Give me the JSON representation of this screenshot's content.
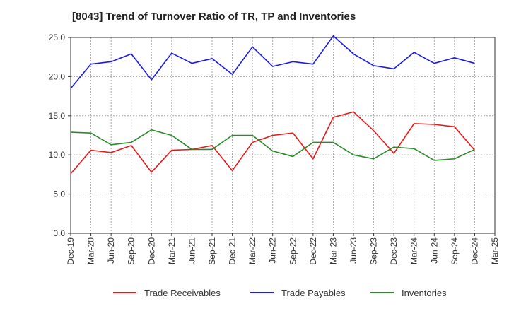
{
  "chart_data": {
    "type": "line",
    "title": "[8043]  Trend of Turnover Ratio of TR, TP and Inventories",
    "xlabel": "",
    "ylabel": "",
    "ylim": [
      0,
      25
    ],
    "yticks": [
      "0.0",
      "5.0",
      "10.0",
      "15.0",
      "20.0",
      "25.0"
    ],
    "categories": [
      "Dec-19",
      "Mar-20",
      "Jun-20",
      "Sep-20",
      "Dec-20",
      "Mar-21",
      "Jun-21",
      "Sep-21",
      "Dec-21",
      "Mar-22",
      "Jun-22",
      "Sep-22",
      "Dec-22",
      "Mar-23",
      "Jun-23",
      "Sep-23",
      "Dec-23",
      "Mar-24",
      "Jun-24",
      "Sep-24",
      "Dec-24",
      "Mar-25"
    ],
    "grid": true,
    "legend_position": "bottom",
    "series": [
      {
        "name": "Trade Receivables",
        "color": "#e8191a",
        "values": [
          7.6,
          10.6,
          10.3,
          11.2,
          7.8,
          10.6,
          10.7,
          11.2,
          8.0,
          11.6,
          12.5,
          12.8,
          9.5,
          14.8,
          15.5,
          13.1,
          10.2,
          14.0,
          13.9,
          13.6,
          10.6,
          null
        ]
      },
      {
        "name": "Trade Payables",
        "color": "#1a1ae6",
        "values": [
          18.5,
          21.6,
          21.9,
          22.9,
          19.6,
          23.0,
          21.7,
          22.3,
          20.3,
          23.8,
          21.3,
          21.9,
          21.6,
          25.2,
          22.9,
          21.4,
          21.0,
          23.1,
          21.7,
          22.4,
          21.7,
          null
        ]
      },
      {
        "name": "Inventories",
        "color": "#2a8a2a",
        "values": [
          12.9,
          12.8,
          11.3,
          11.6,
          13.2,
          12.5,
          10.7,
          10.7,
          12.5,
          12.5,
          10.5,
          9.8,
          11.6,
          11.6,
          10.0,
          9.5,
          11.0,
          10.8,
          9.3,
          9.5,
          10.7,
          null
        ]
      }
    ]
  }
}
